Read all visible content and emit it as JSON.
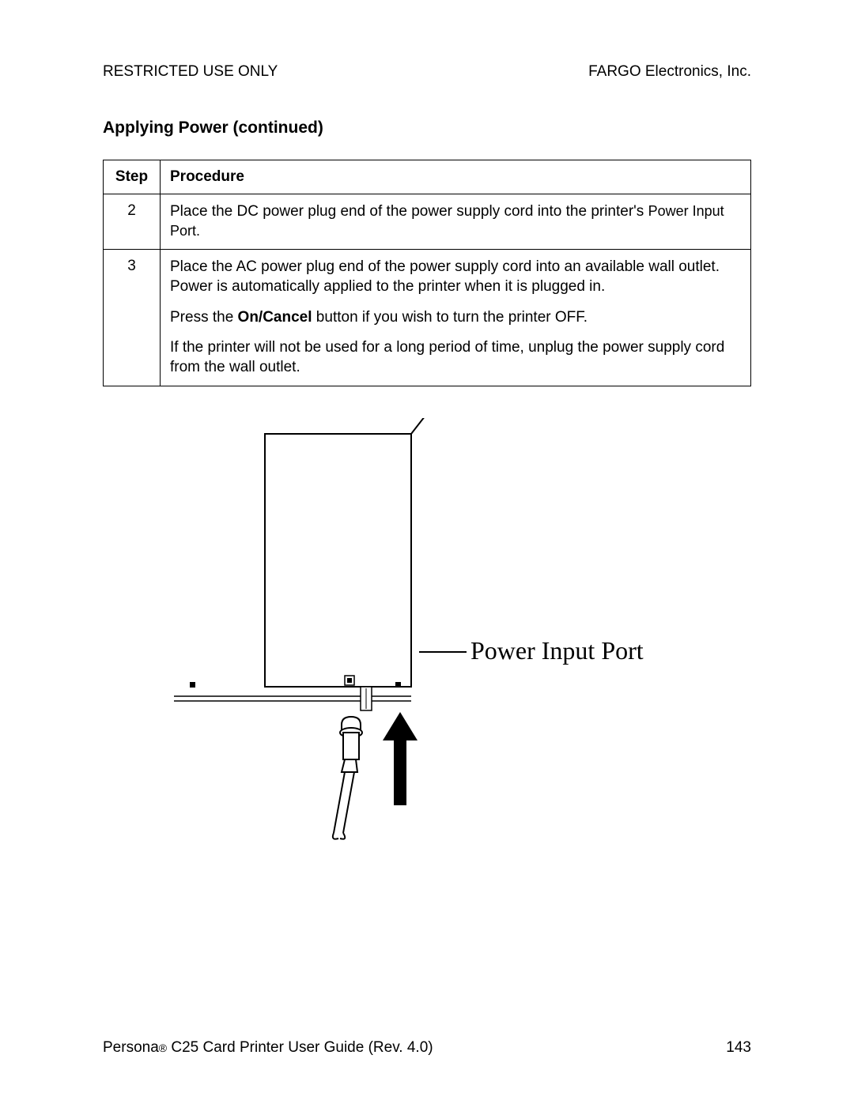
{
  "header": {
    "left": "RESTRICTED USE ONLY",
    "right": "FARGO Electronics, Inc."
  },
  "section_title": "Applying Power (continued)",
  "table": {
    "columns": [
      "Step",
      "Procedure"
    ],
    "rows": [
      {
        "step": "2",
        "paras": [
          {
            "pre": "Place the DC power plug end of the power supply cord into the printer's ",
            "bold": "",
            "post": "Power Input Port.",
            "post_is_small": true
          }
        ]
      },
      {
        "step": "3",
        "paras": [
          {
            "pre": "Place the AC power plug end of the power supply cord into an available wall outlet. Power is automatically applied to the printer when it is plugged in.",
            "bold": "",
            "post": ""
          },
          {
            "pre": "Press the ",
            "bold": "On/Cancel",
            "post": " button if you wish to turn the printer OFF."
          },
          {
            "pre": "If the printer will not be used for a long period of time, unplug the power supply cord from the wall outlet.",
            "bold": "",
            "post": ""
          }
        ]
      }
    ]
  },
  "diagram": {
    "label": "Power Input Port",
    "stroke": "#000000",
    "fill_white": "#ffffff",
    "fill_black": "#000000",
    "line_width_thin": 1.5,
    "line_width_med": 2,
    "arrow_width": 18
  },
  "footer": {
    "left_pre": "Persona",
    "left_reg": "®",
    "left_post": " C25 Card Printer User Guide (Rev. 4.0)",
    "page": "143"
  }
}
